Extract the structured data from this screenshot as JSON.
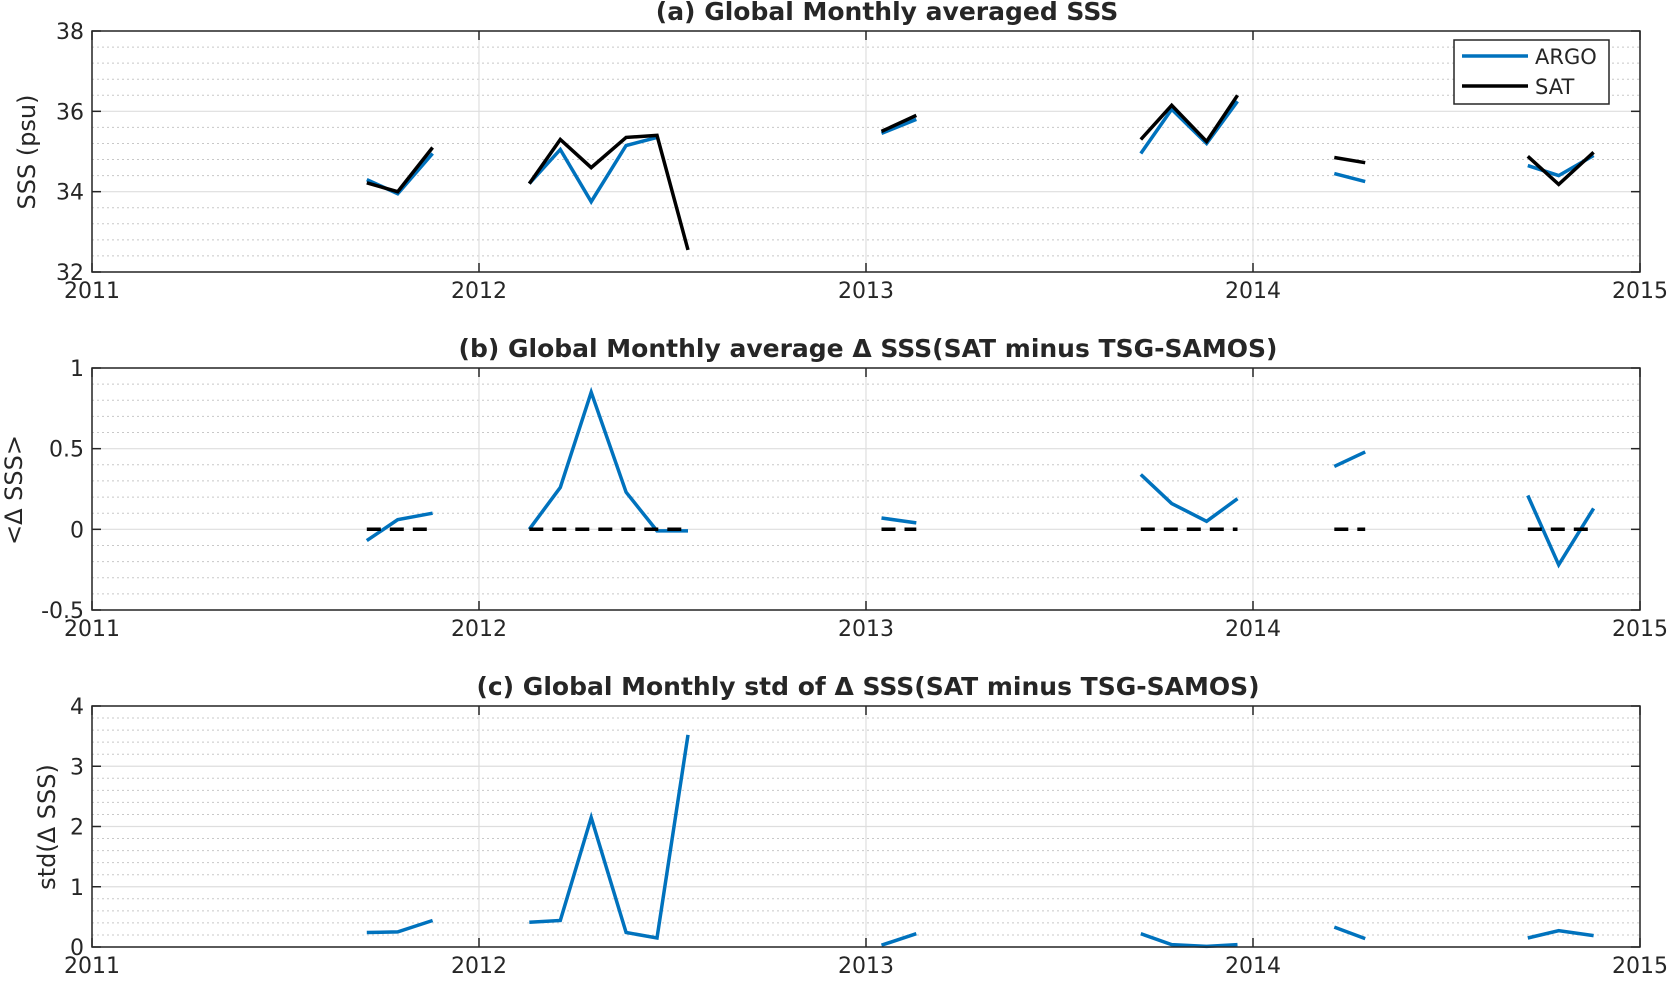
{
  "chart_data": [
    {
      "type": "line",
      "title": "(a) Global Monthly averaged SSS",
      "xlabel": "",
      "ylabel": "SSS (psu)",
      "xlim": [
        2011,
        2015
      ],
      "ylim": [
        32,
        38
      ],
      "xticks": [
        2011,
        2012,
        2013,
        2014,
        2015
      ],
      "yticks": [
        32,
        34,
        36,
        38
      ],
      "grid": true,
      "legend_position": "top-right",
      "series": [
        {
          "name": "ARGO",
          "color": "#0072BD",
          "style": "solid",
          "segments": [
            [
              [
                2011.71,
                34.3
              ],
              [
                2011.79,
                33.95
              ],
              [
                2011.88,
                34.95
              ]
            ],
            [
              [
                2012.13,
                34.2
              ],
              [
                2012.21,
                35.05
              ],
              [
                2012.29,
                33.75
              ],
              [
                2012.38,
                35.15
              ],
              [
                2012.46,
                35.35
              ]
            ],
            [
              [
                2013.04,
                35.45
              ],
              [
                2013.13,
                35.8
              ]
            ],
            [
              [
                2013.71,
                34.95
              ],
              [
                2013.79,
                36.05
              ],
              [
                2013.88,
                35.2
              ],
              [
                2013.96,
                36.25
              ]
            ],
            [
              [
                2014.21,
                34.45
              ],
              [
                2014.29,
                34.25
              ]
            ],
            [
              [
                2014.71,
                34.65
              ],
              [
                2014.79,
                34.4
              ],
              [
                2014.88,
                34.9
              ]
            ]
          ]
        },
        {
          "name": "SAT",
          "color": "#000000",
          "style": "solid",
          "segments": [
            [
              [
                2011.71,
                34.22
              ],
              [
                2011.79,
                34.0
              ],
              [
                2011.88,
                35.1
              ]
            ],
            [
              [
                2012.13,
                34.2
              ],
              [
                2012.21,
                35.3
              ],
              [
                2012.29,
                34.6
              ],
              [
                2012.38,
                35.35
              ],
              [
                2012.46,
                35.4
              ],
              [
                2012.54,
                32.55
              ]
            ],
            [
              [
                2013.04,
                35.5
              ],
              [
                2013.13,
                35.9
              ]
            ],
            [
              [
                2013.71,
                35.3
              ],
              [
                2013.79,
                36.15
              ],
              [
                2013.88,
                35.25
              ],
              [
                2013.96,
                36.4
              ]
            ],
            [
              [
                2014.21,
                34.85
              ],
              [
                2014.29,
                34.72
              ]
            ],
            [
              [
                2014.71,
                34.88
              ],
              [
                2014.79,
                34.18
              ],
              [
                2014.88,
                34.98
              ]
            ]
          ]
        }
      ]
    },
    {
      "type": "line",
      "title": "(b) Global Monthly average Δ SSS(SAT minus TSG-SAMOS)",
      "xlabel": "",
      "ylabel": "<Δ SSS>",
      "xlim": [
        2011,
        2015
      ],
      "ylim": [
        -0.5,
        1
      ],
      "xticks": [
        2011,
        2012,
        2013,
        2014,
        2015
      ],
      "yticks": [
        -0.5,
        0,
        0.5,
        1
      ],
      "ytick_labels": [
        "-0.5",
        "0",
        "0.5",
        "1"
      ],
      "grid": true,
      "series": [
        {
          "color": "#0072BD",
          "style": "solid",
          "segments": [
            [
              [
                2011.71,
                -0.07
              ],
              [
                2011.79,
                0.06
              ],
              [
                2011.88,
                0.1
              ]
            ],
            [
              [
                2012.13,
                0.0
              ],
              [
                2012.21,
                0.26
              ],
              [
                2012.29,
                0.85
              ],
              [
                2012.38,
                0.23
              ],
              [
                2012.46,
                -0.01
              ],
              [
                2012.54,
                -0.01
              ]
            ],
            [
              [
                2013.04,
                0.07
              ],
              [
                2013.13,
                0.04
              ]
            ],
            [
              [
                2013.71,
                0.34
              ],
              [
                2013.79,
                0.16
              ],
              [
                2013.88,
                0.05
              ],
              [
                2013.96,
                0.19
              ]
            ],
            [
              [
                2014.21,
                0.39
              ],
              [
                2014.29,
                0.48
              ]
            ],
            [
              [
                2014.71,
                0.21
              ],
              [
                2014.79,
                -0.22
              ],
              [
                2014.88,
                0.13
              ]
            ]
          ]
        },
        {
          "color": "#000000",
          "style": "dashed",
          "segments": [
            [
              [
                2011.71,
                0
              ],
              [
                2011.88,
                0
              ]
            ],
            [
              [
                2012.13,
                0
              ],
              [
                2012.54,
                0
              ]
            ],
            [
              [
                2013.04,
                0
              ],
              [
                2013.13,
                0
              ]
            ],
            [
              [
                2013.71,
                0
              ],
              [
                2013.96,
                0
              ]
            ],
            [
              [
                2014.21,
                0
              ],
              [
                2014.29,
                0
              ]
            ],
            [
              [
                2014.71,
                0
              ],
              [
                2014.88,
                0
              ]
            ]
          ]
        }
      ]
    },
    {
      "type": "line",
      "title": "(c) Global Monthly std of Δ SSS(SAT minus TSG-SAMOS)",
      "xlabel": "",
      "ylabel": "std(Δ SSS)",
      "xlim": [
        2011,
        2015
      ],
      "ylim": [
        0,
        4
      ],
      "xticks": [
        2011,
        2012,
        2013,
        2014,
        2015
      ],
      "yticks": [
        0,
        1,
        2,
        3,
        4
      ],
      "grid": true,
      "series": [
        {
          "color": "#0072BD",
          "style": "solid",
          "segments": [
            [
              [
                2011.71,
                0.24
              ],
              [
                2011.79,
                0.25
              ],
              [
                2011.88,
                0.44
              ]
            ],
            [
              [
                2012.13,
                0.41
              ],
              [
                2012.21,
                0.44
              ],
              [
                2012.29,
                2.15
              ],
              [
                2012.38,
                0.24
              ],
              [
                2012.46,
                0.15
              ],
              [
                2012.54,
                3.52
              ]
            ],
            [
              [
                2013.04,
                0.03
              ],
              [
                2013.13,
                0.22
              ]
            ],
            [
              [
                2013.71,
                0.22
              ],
              [
                2013.79,
                0.04
              ],
              [
                2013.88,
                0.01
              ],
              [
                2013.96,
                0.04
              ]
            ],
            [
              [
                2014.21,
                0.33
              ],
              [
                2014.29,
                0.14
              ]
            ],
            [
              [
                2014.71,
                0.15
              ],
              [
                2014.79,
                0.27
              ],
              [
                2014.88,
                0.19
              ]
            ]
          ]
        }
      ]
    }
  ]
}
